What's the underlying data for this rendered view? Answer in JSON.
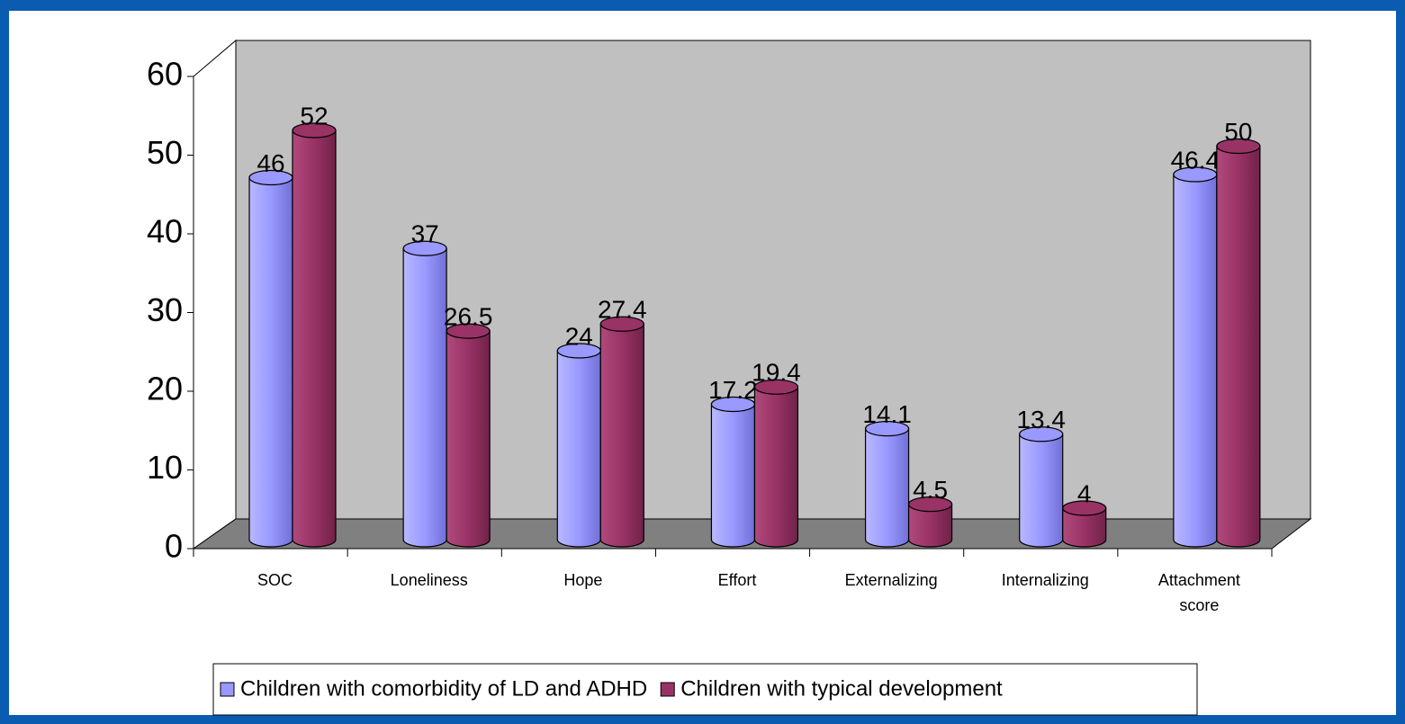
{
  "chart_data": {
    "type": "bar",
    "categories": [
      "SOC",
      "Loneliness",
      "Hope",
      "Effort",
      "Externalizing",
      "Internalizing",
      "Attachment score"
    ],
    "series": [
      {
        "name": "Children with comorbidity of LD and ADHD",
        "color": "#9999ff",
        "values": [
          46,
          37,
          24,
          17.2,
          14.1,
          13.4,
          46.4
        ]
      },
      {
        "name": "Children with typical development",
        "color": "#993366",
        "values": [
          52,
          26.5,
          27.4,
          19.4,
          4.5,
          4,
          50
        ]
      }
    ],
    "ylim": [
      0,
      60
    ],
    "yticks": [
      0,
      10,
      20,
      30,
      40,
      50,
      60
    ],
    "legend": "bottom"
  }
}
